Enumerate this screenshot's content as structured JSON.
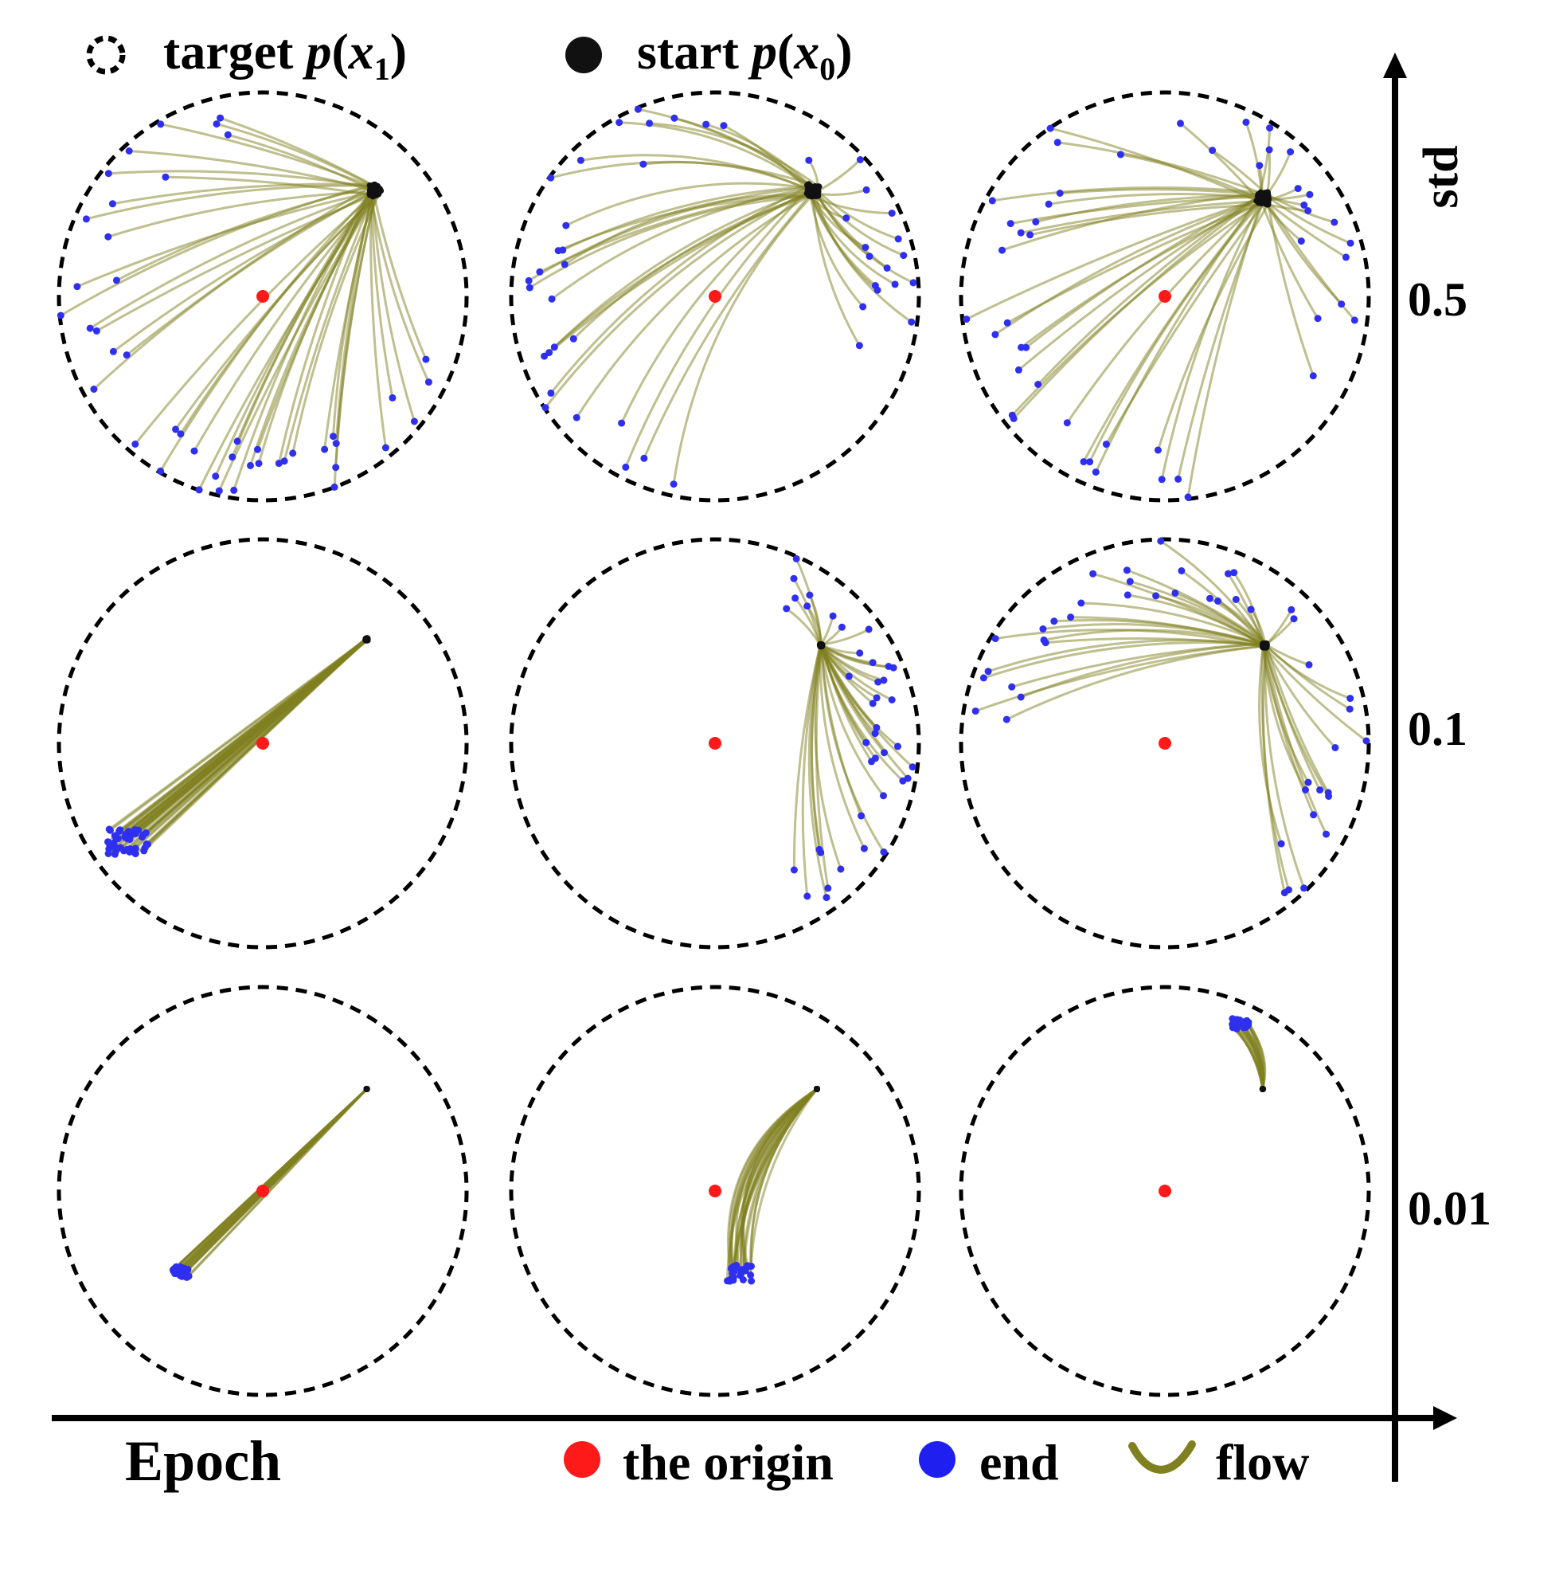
{
  "legend_top": {
    "target": {
      "prefix": "target ",
      "p": "p",
      "x": "x",
      "sub": "1"
    },
    "start": {
      "prefix": "start ",
      "p": "p",
      "x": "x",
      "sub": "0"
    }
  },
  "legend_bottom": {
    "origin_label": "the origin",
    "end_label": "end",
    "flow_label": "flow"
  },
  "axes": {
    "x_label": "Epoch",
    "y_label": "std",
    "std_ticks": [
      "0.5",
      "0.1",
      "0.01"
    ]
  },
  "colors": {
    "flow": "#808020",
    "end": "#2f2ff0",
    "origin": "#ff1a1a",
    "start": "#111111",
    "circle": "#000000"
  },
  "panels": [
    {
      "row": 0,
      "col": 0,
      "std": "0.5",
      "start": [
        0.55,
        0.52
      ],
      "start_spread": 0.06,
      "n_flows": 45,
      "end_mode": "spread",
      "end_arc": [
        100,
        340
      ],
      "curve": 0.05
    },
    {
      "row": 0,
      "col": 1,
      "std": "0.5",
      "start": [
        0.48,
        0.52
      ],
      "start_spread": 0.06,
      "n_flows": 45,
      "end_mode": "spread",
      "end_arc": [
        -20,
        260
      ],
      "curve": 0.12
    },
    {
      "row": 0,
      "col": 2,
      "std": "0.5",
      "start": [
        0.48,
        0.48
      ],
      "start_spread": 0.06,
      "n_flows": 48,
      "end_mode": "spread",
      "end_arc": [
        -30,
        280
      ],
      "curve": 0.05
    },
    {
      "row": 1,
      "col": 0,
      "std": "0.1",
      "start": [
        0.51,
        0.51
      ],
      "start_spread": 0.01,
      "n_flows": 40,
      "end_mode": "cluster",
      "end_center": [
        -0.66,
        -0.48
      ],
      "end_spread": 0.1,
      "curve": 0.0
    },
    {
      "row": 1,
      "col": 1,
      "std": "0.1",
      "start": [
        0.52,
        0.48
      ],
      "start_spread": 0.01,
      "n_flows": 40,
      "end_mode": "spread",
      "end_arc": [
        -60,
        70
      ],
      "curve": 0.1
    },
    {
      "row": 1,
      "col": 2,
      "std": "0.1",
      "start": [
        0.49,
        0.48
      ],
      "start_spread": 0.02,
      "n_flows": 45,
      "end_mode": "spread",
      "end_arc": [
        -60,
        180
      ],
      "curve": 0.08
    },
    {
      "row": 2,
      "col": 0,
      "std": "0.01",
      "start": [
        0.51,
        0.5
      ],
      "start_spread": 0.0,
      "n_flows": 25,
      "end_mode": "cluster",
      "end_center": [
        -0.4,
        -0.4
      ],
      "end_spread": 0.04,
      "curve": 0.0
    },
    {
      "row": 2,
      "col": 1,
      "std": "0.01",
      "start": [
        0.5,
        0.5
      ],
      "start_spread": 0.0,
      "n_flows": 25,
      "end_mode": "cluster",
      "end_center": [
        0.12,
        -0.4
      ],
      "end_spread": 0.06,
      "curve": 0.25
    },
    {
      "row": 2,
      "col": 2,
      "std": "0.01",
      "start": [
        0.48,
        0.5
      ],
      "start_spread": 0.0,
      "n_flows": 22,
      "end_mode": "cluster",
      "end_center": [
        0.37,
        0.82
      ],
      "end_spread": 0.04,
      "curve": 0.2
    }
  ]
}
